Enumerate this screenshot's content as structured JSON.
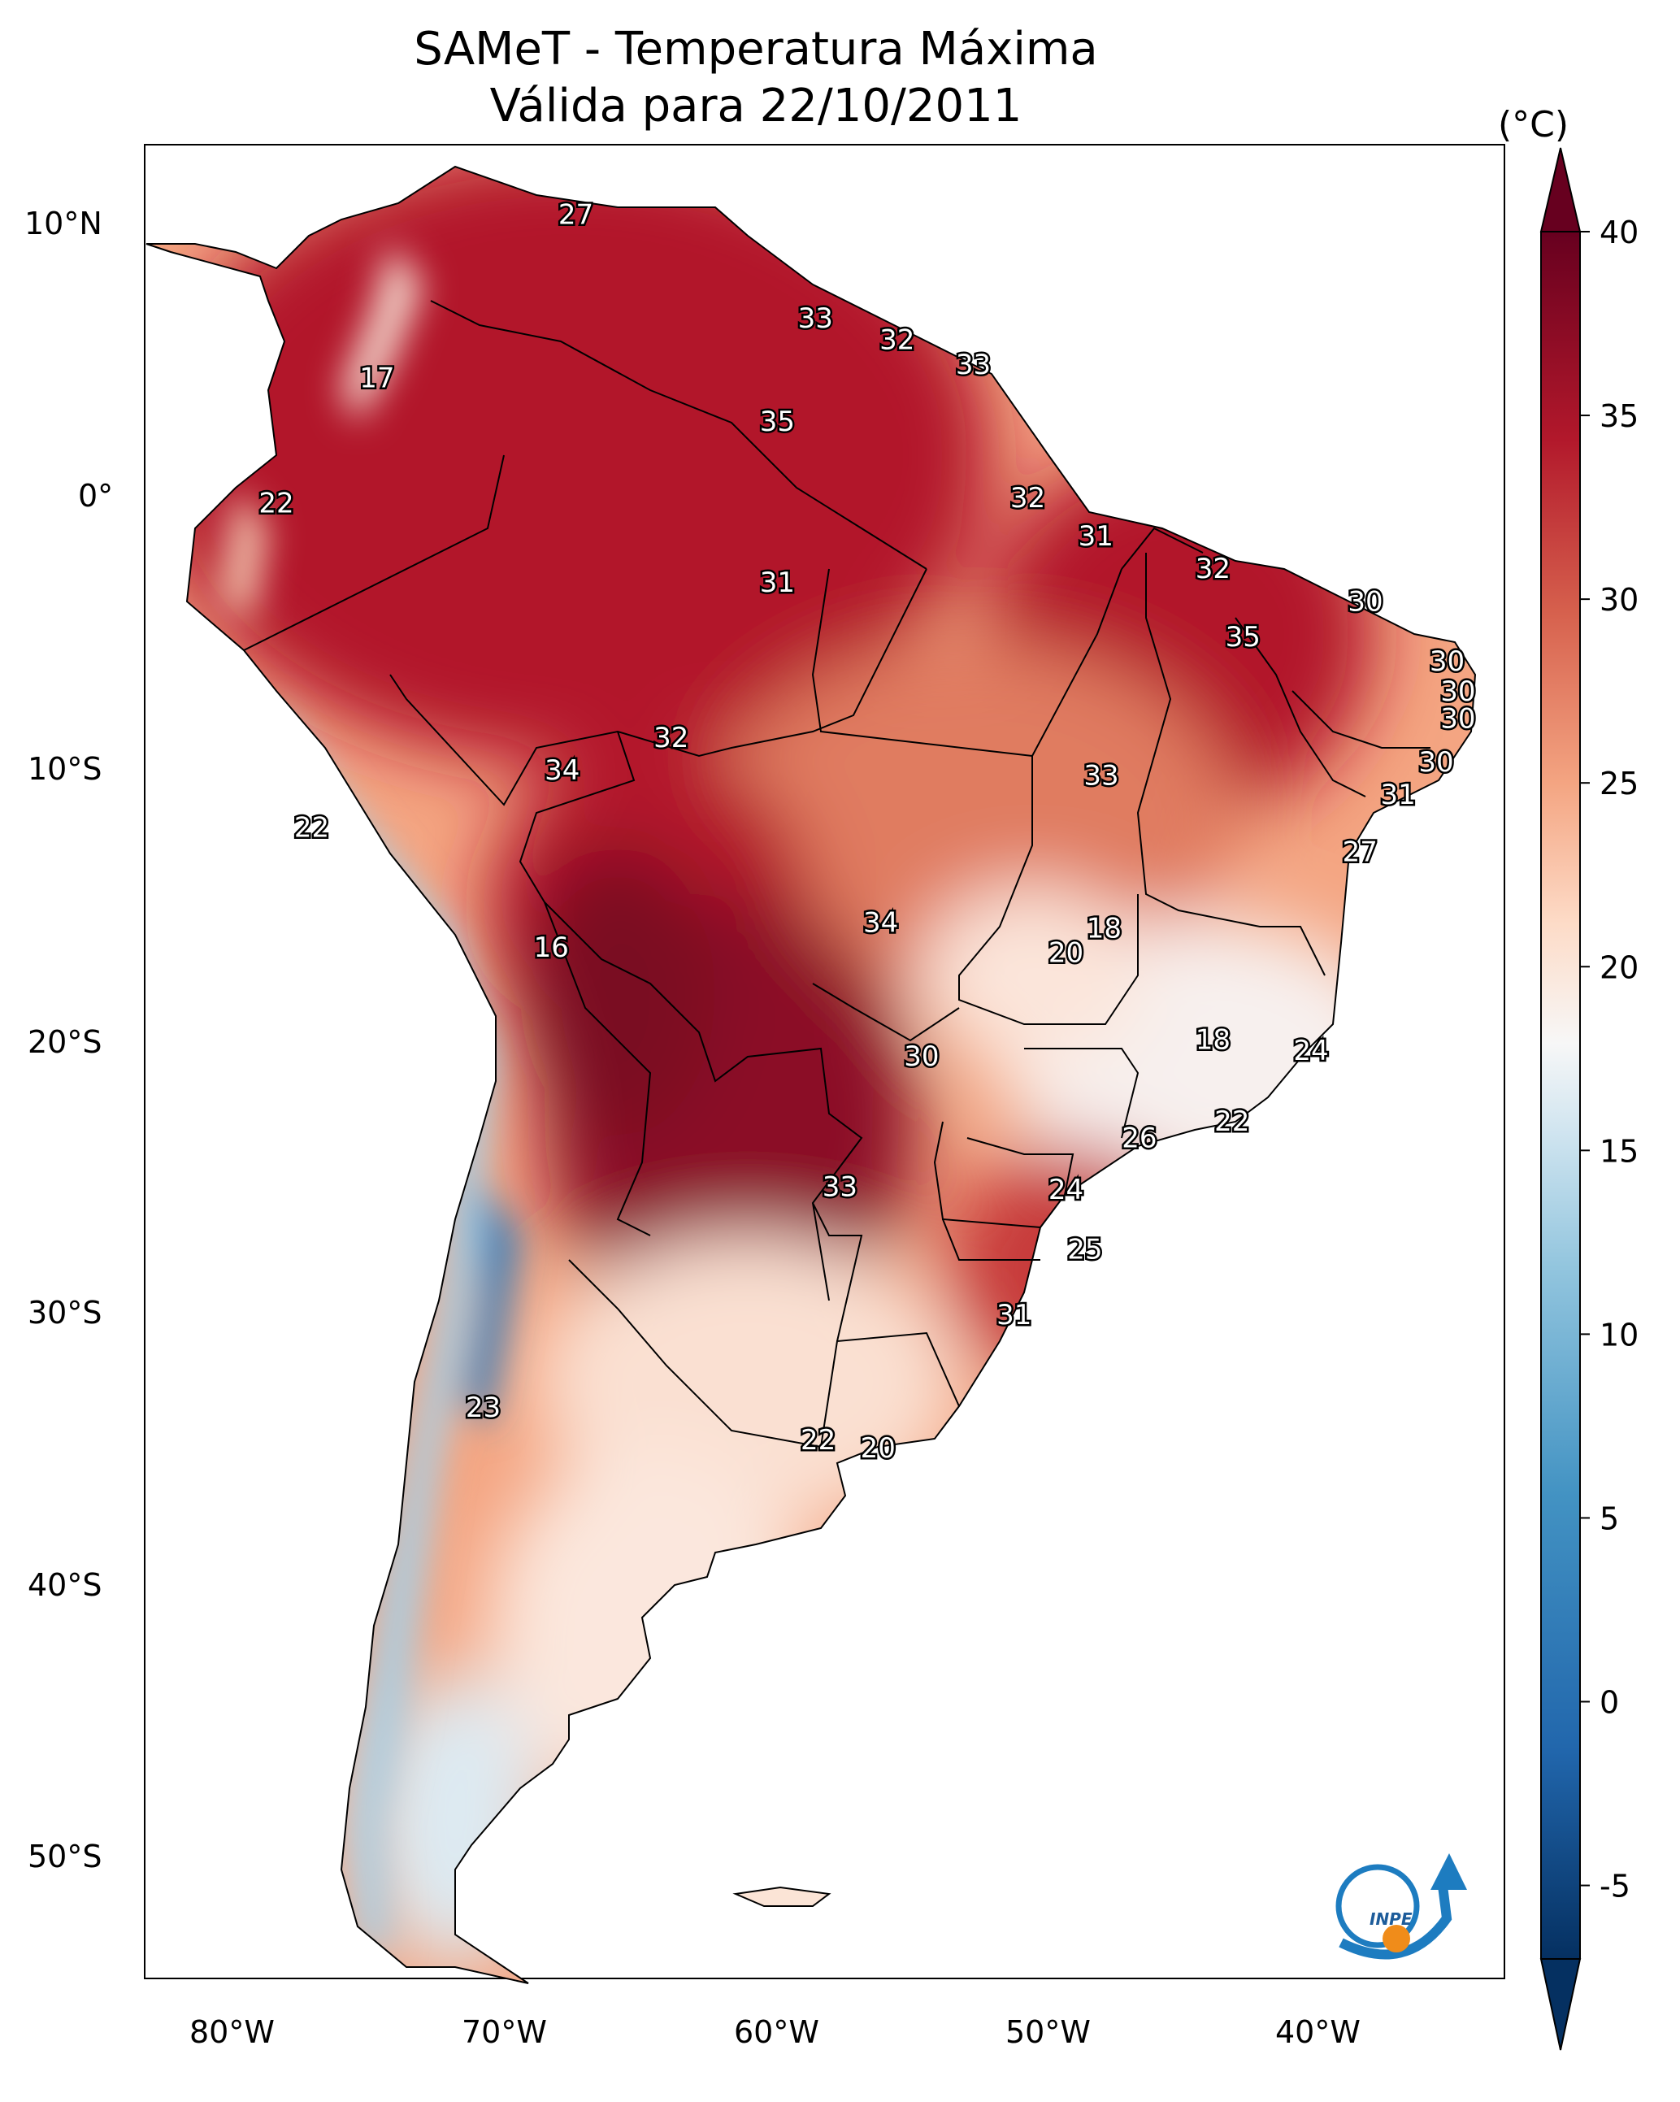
{
  "title": {
    "line1": "SAMeT - Temperatura Máxima",
    "line2": "Válida para 22/10/2011"
  },
  "axes": {
    "lat_labels": [
      "10°N",
      "0°",
      "10°S",
      "20°S",
      "30°S",
      "40°S",
      "50°S"
    ],
    "lon_labels": [
      "80°W",
      "70°W",
      "60°W",
      "50°W",
      "40°W"
    ]
  },
  "colorbar": {
    "unit": "(°C)",
    "min": -7,
    "max": 40,
    "ticks": [
      40,
      35,
      30,
      25,
      20,
      15,
      10,
      5,
      0,
      -5
    ],
    "tick_labels": [
      "40",
      "35",
      "30",
      "25",
      "20",
      "15",
      "10",
      "5",
      "0",
      "-5"
    ],
    "colors": [
      "#053061",
      "#2166ac",
      "#4393c3",
      "#92c5de",
      "#d1e5f0",
      "#f7f7f7",
      "#fddbc7",
      "#f4a582",
      "#d6604d",
      "#b2182b",
      "#67001f"
    ]
  },
  "stations": [
    {
      "value": "27",
      "lon": -67.3,
      "lat": 10.4
    },
    {
      "value": "17",
      "lon": -74.6,
      "lat": 4.4
    },
    {
      "value": "33",
      "lon": -58.5,
      "lat": 6.6
    },
    {
      "value": "32",
      "lon": -55.5,
      "lat": 5.8
    },
    {
      "value": "33",
      "lon": -52.7,
      "lat": 4.9
    },
    {
      "value": "35",
      "lon": -59.9,
      "lat": 2.8
    },
    {
      "value": "32",
      "lon": -50.7,
      "lat": 0.0
    },
    {
      "value": "22",
      "lon": -78.3,
      "lat": -0.2
    },
    {
      "value": "31",
      "lon": -48.2,
      "lat": -1.4
    },
    {
      "value": "32",
      "lon": -43.9,
      "lat": -2.6
    },
    {
      "value": "31",
      "lon": -59.9,
      "lat": -3.1
    },
    {
      "value": "30",
      "lon": -38.3,
      "lat": -3.8
    },
    {
      "value": "35",
      "lon": -42.8,
      "lat": -5.1
    },
    {
      "value": "30",
      "lon": -35.3,
      "lat": -6.0
    },
    {
      "value": "30",
      "lon": -34.9,
      "lat": -7.1
    },
    {
      "value": "30",
      "lon": -34.9,
      "lat": -8.1
    },
    {
      "value": "32",
      "lon": -63.8,
      "lat": -8.8
    },
    {
      "value": "30",
      "lon": -35.7,
      "lat": -9.7
    },
    {
      "value": "34",
      "lon": -67.8,
      "lat": -10.0
    },
    {
      "value": "33",
      "lon": -48.0,
      "lat": -10.2
    },
    {
      "value": "31",
      "lon": -37.1,
      "lat": -10.9
    },
    {
      "value": "22",
      "lon": -77.0,
      "lat": -12.1
    },
    {
      "value": "27",
      "lon": -38.5,
      "lat": -13.0
    },
    {
      "value": "34",
      "lon": -56.1,
      "lat": -15.6
    },
    {
      "value": "18",
      "lon": -47.9,
      "lat": -15.8
    },
    {
      "value": "20",
      "lon": -49.3,
      "lat": -16.7
    },
    {
      "value": "16",
      "lon": -68.2,
      "lat": -16.5
    },
    {
      "value": "18",
      "lon": -43.9,
      "lat": -19.9
    },
    {
      "value": "30",
      "lon": -54.6,
      "lat": -20.5
    },
    {
      "value": "24",
      "lon": -40.3,
      "lat": -20.3
    },
    {
      "value": "22",
      "lon": -43.2,
      "lat": -22.9
    },
    {
      "value": "26",
      "lon": -46.6,
      "lat": -23.5
    },
    {
      "value": "33",
      "lon": -57.6,
      "lat": -25.3
    },
    {
      "value": "24",
      "lon": -49.3,
      "lat": -25.4
    },
    {
      "value": "25",
      "lon": -48.6,
      "lat": -27.6
    },
    {
      "value": "31",
      "lon": -51.2,
      "lat": -30.0
    },
    {
      "value": "23",
      "lon": -70.7,
      "lat": -33.4
    },
    {
      "value": "22",
      "lon": -58.4,
      "lat": -34.6
    },
    {
      "value": "20",
      "lon": -56.2,
      "lat": -34.9
    }
  ]
}
